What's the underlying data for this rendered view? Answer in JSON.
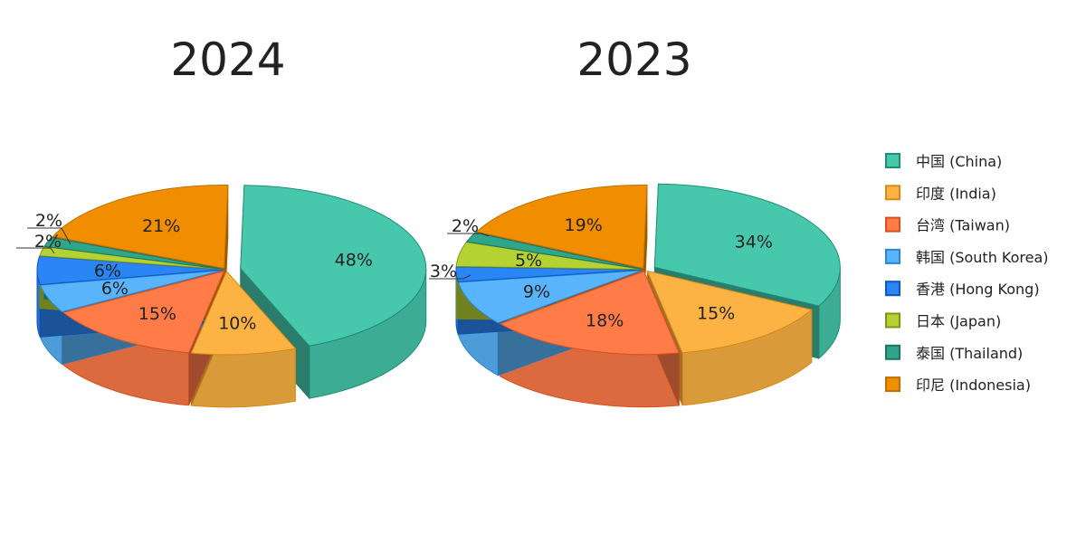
{
  "chart_data": [
    {
      "type": "pie",
      "title": "2024",
      "slices": [
        {
          "label": "中国 (China)",
          "value": 48,
          "display": "48%"
        },
        {
          "label": "印度 (India)",
          "value": 10,
          "display": "10%"
        },
        {
          "label": "台湾 (Taiwan)",
          "value": 15,
          "display": "15%"
        },
        {
          "label": "韩国 (South Korea)",
          "value": 6,
          "display": "6%"
        },
        {
          "label": "香港 (Hong Kong)",
          "value": 6,
          "display": "6%"
        },
        {
          "label": "日本 (Japan)",
          "value": 2,
          "display": "2%"
        },
        {
          "label": "泰国 (Thailand)",
          "value": 2,
          "display": "2%"
        },
        {
          "label": "印尼 (Indonesia)",
          "value": 21,
          "display": "21%"
        }
      ]
    },
    {
      "type": "pie",
      "title": "2023",
      "slices": [
        {
          "label": "中国 (China)",
          "value": 34,
          "display": "34%"
        },
        {
          "label": "印度 (India)",
          "value": 15,
          "display": "15%"
        },
        {
          "label": "台湾 (Taiwan)",
          "value": 18,
          "display": "18%"
        },
        {
          "label": "韩国 (South Korea)",
          "value": 9,
          "display": "9%"
        },
        {
          "label": "香港 (Hong Kong)",
          "value": 3,
          "display": "3%"
        },
        {
          "label": "日本 (Japan)",
          "value": 5,
          "display": "5%"
        },
        {
          "label": "泰国 (Thailand)",
          "value": 2,
          "display": "2%"
        },
        {
          "label": "印尼 (Indonesia)",
          "value": 19,
          "display": "19%"
        }
      ]
    }
  ],
  "legend": {
    "placement": "right",
    "items": [
      {
        "label": "中国 (China)",
        "color": "#47C8AC",
        "border": "#1E8E76"
      },
      {
        "label": "印度 (India)",
        "color": "#FCB343",
        "border": "#D98A14"
      },
      {
        "label": "台湾 (Taiwan)",
        "color": "#FF7B48",
        "border": "#D9501E"
      },
      {
        "label": "韩国 (South Korea)",
        "color": "#5AB4FB",
        "border": "#2A86D6"
      },
      {
        "label": "香港 (Hong Kong)",
        "color": "#2B86F5",
        "border": "#0E56C2"
      },
      {
        "label": "日本 (Japan)",
        "color": "#B4D232",
        "border": "#7E9618"
      },
      {
        "label": "泰国 (Thailand)",
        "color": "#2FA58A",
        "border": "#1D7561"
      },
      {
        "label": "印尼 (Indonesia)",
        "color": "#F18E00",
        "border": "#C06E00"
      }
    ]
  }
}
